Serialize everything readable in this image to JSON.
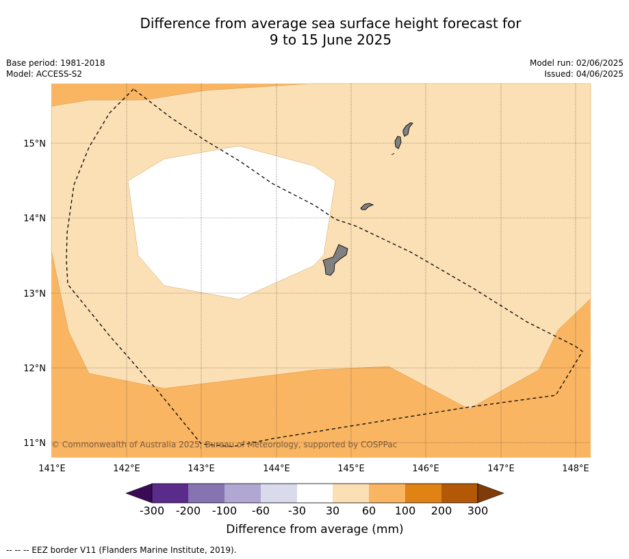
{
  "title_line1": "Difference from average sea surface height forecast for",
  "title_line2": "9 to 15 June 2025",
  "base_period": "Base period: 1981-2018",
  "model": "Model: ACCESS-S2",
  "model_run": "Model run: 02/06/2025",
  "issued": "Issued: 04/06/2025",
  "copyright": "© Commonwealth of Australia 2025, Bureau of Meteorology, supported by COSPPac",
  "lon_labels": [
    "141°E",
    "142°E",
    "143°E",
    "144°E",
    "145°E",
    "146°E",
    "147°E",
    "148°E"
  ],
  "lat_labels": [
    "15°N",
    "14°N",
    "13°N",
    "12°N",
    "11°N"
  ],
  "colorbar": {
    "ticks": [
      "-300",
      "-200",
      "-100",
      "-60",
      "-30",
      "30",
      "60",
      "100",
      "200",
      "300"
    ],
    "label": "Difference from average (mm)",
    "colors": [
      "#3b0a54",
      "#5b2b8c",
      "#8573b2",
      "#b0a8d2",
      "#d9dbec",
      "#ffffff",
      "#fce0b5",
      "#f9b562",
      "#e08214",
      "#b35806",
      "#7f3b08"
    ]
  },
  "footer_note": "--  --  -- EEZ border V11 (Flanders Marine Institute, 2019).",
  "map_colors": {
    "zone_60_100": "#f9b562",
    "zone_30_60": "#fce0b5",
    "zone_neutral": "#ffffff",
    "land": "#808080"
  }
}
